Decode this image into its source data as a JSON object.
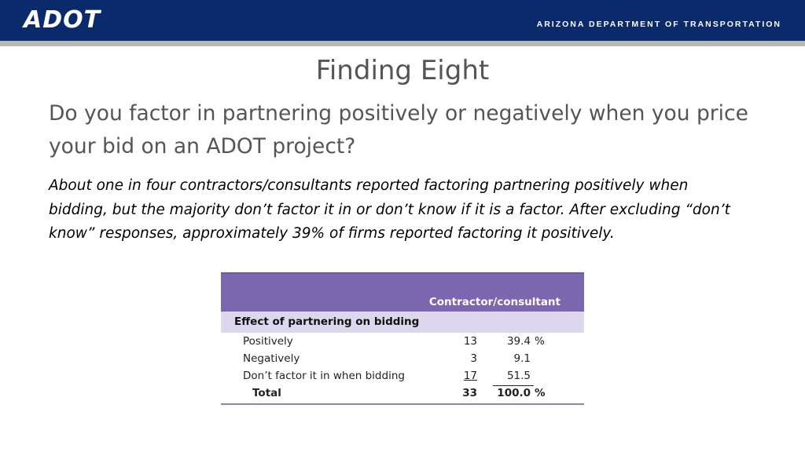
{
  "header": {
    "logo": "ADOT",
    "org_name": "ARIZONA DEPARTMENT OF TRANSPORTATION",
    "bar_color": "#0b2a6b",
    "stripe_color": "#b7b7b7"
  },
  "slide": {
    "title": "Finding Eight",
    "question": "Do you factor in partnering positively or negatively when you price your bid on an ADOT project?",
    "summary": "About one in four contractors/consultants reported factoring partnering positively when bidding, but the majority don’t factor it in or don’t know if it is a factor. After excluding “don’t know” responses, approximately 39% of firms reported factoring it positively."
  },
  "table": {
    "column_header": "Contractor/consultant",
    "section_header": "Effect of partnering on bidding",
    "header_color": "#7b66b0",
    "section_color": "#dcd7ec",
    "rows": [
      {
        "label": "Positively",
        "count": "13",
        "percent": "39.4",
        "unit": "%"
      },
      {
        "label": "Negatively",
        "count": "3",
        "percent": "9.1",
        "unit": ""
      },
      {
        "label": "Don’t factor it in when bidding",
        "count": "17",
        "percent": "51.5",
        "unit": ""
      }
    ],
    "total": {
      "label": "Total",
      "count": "33",
      "percent": "100.0",
      "unit": "%"
    }
  }
}
